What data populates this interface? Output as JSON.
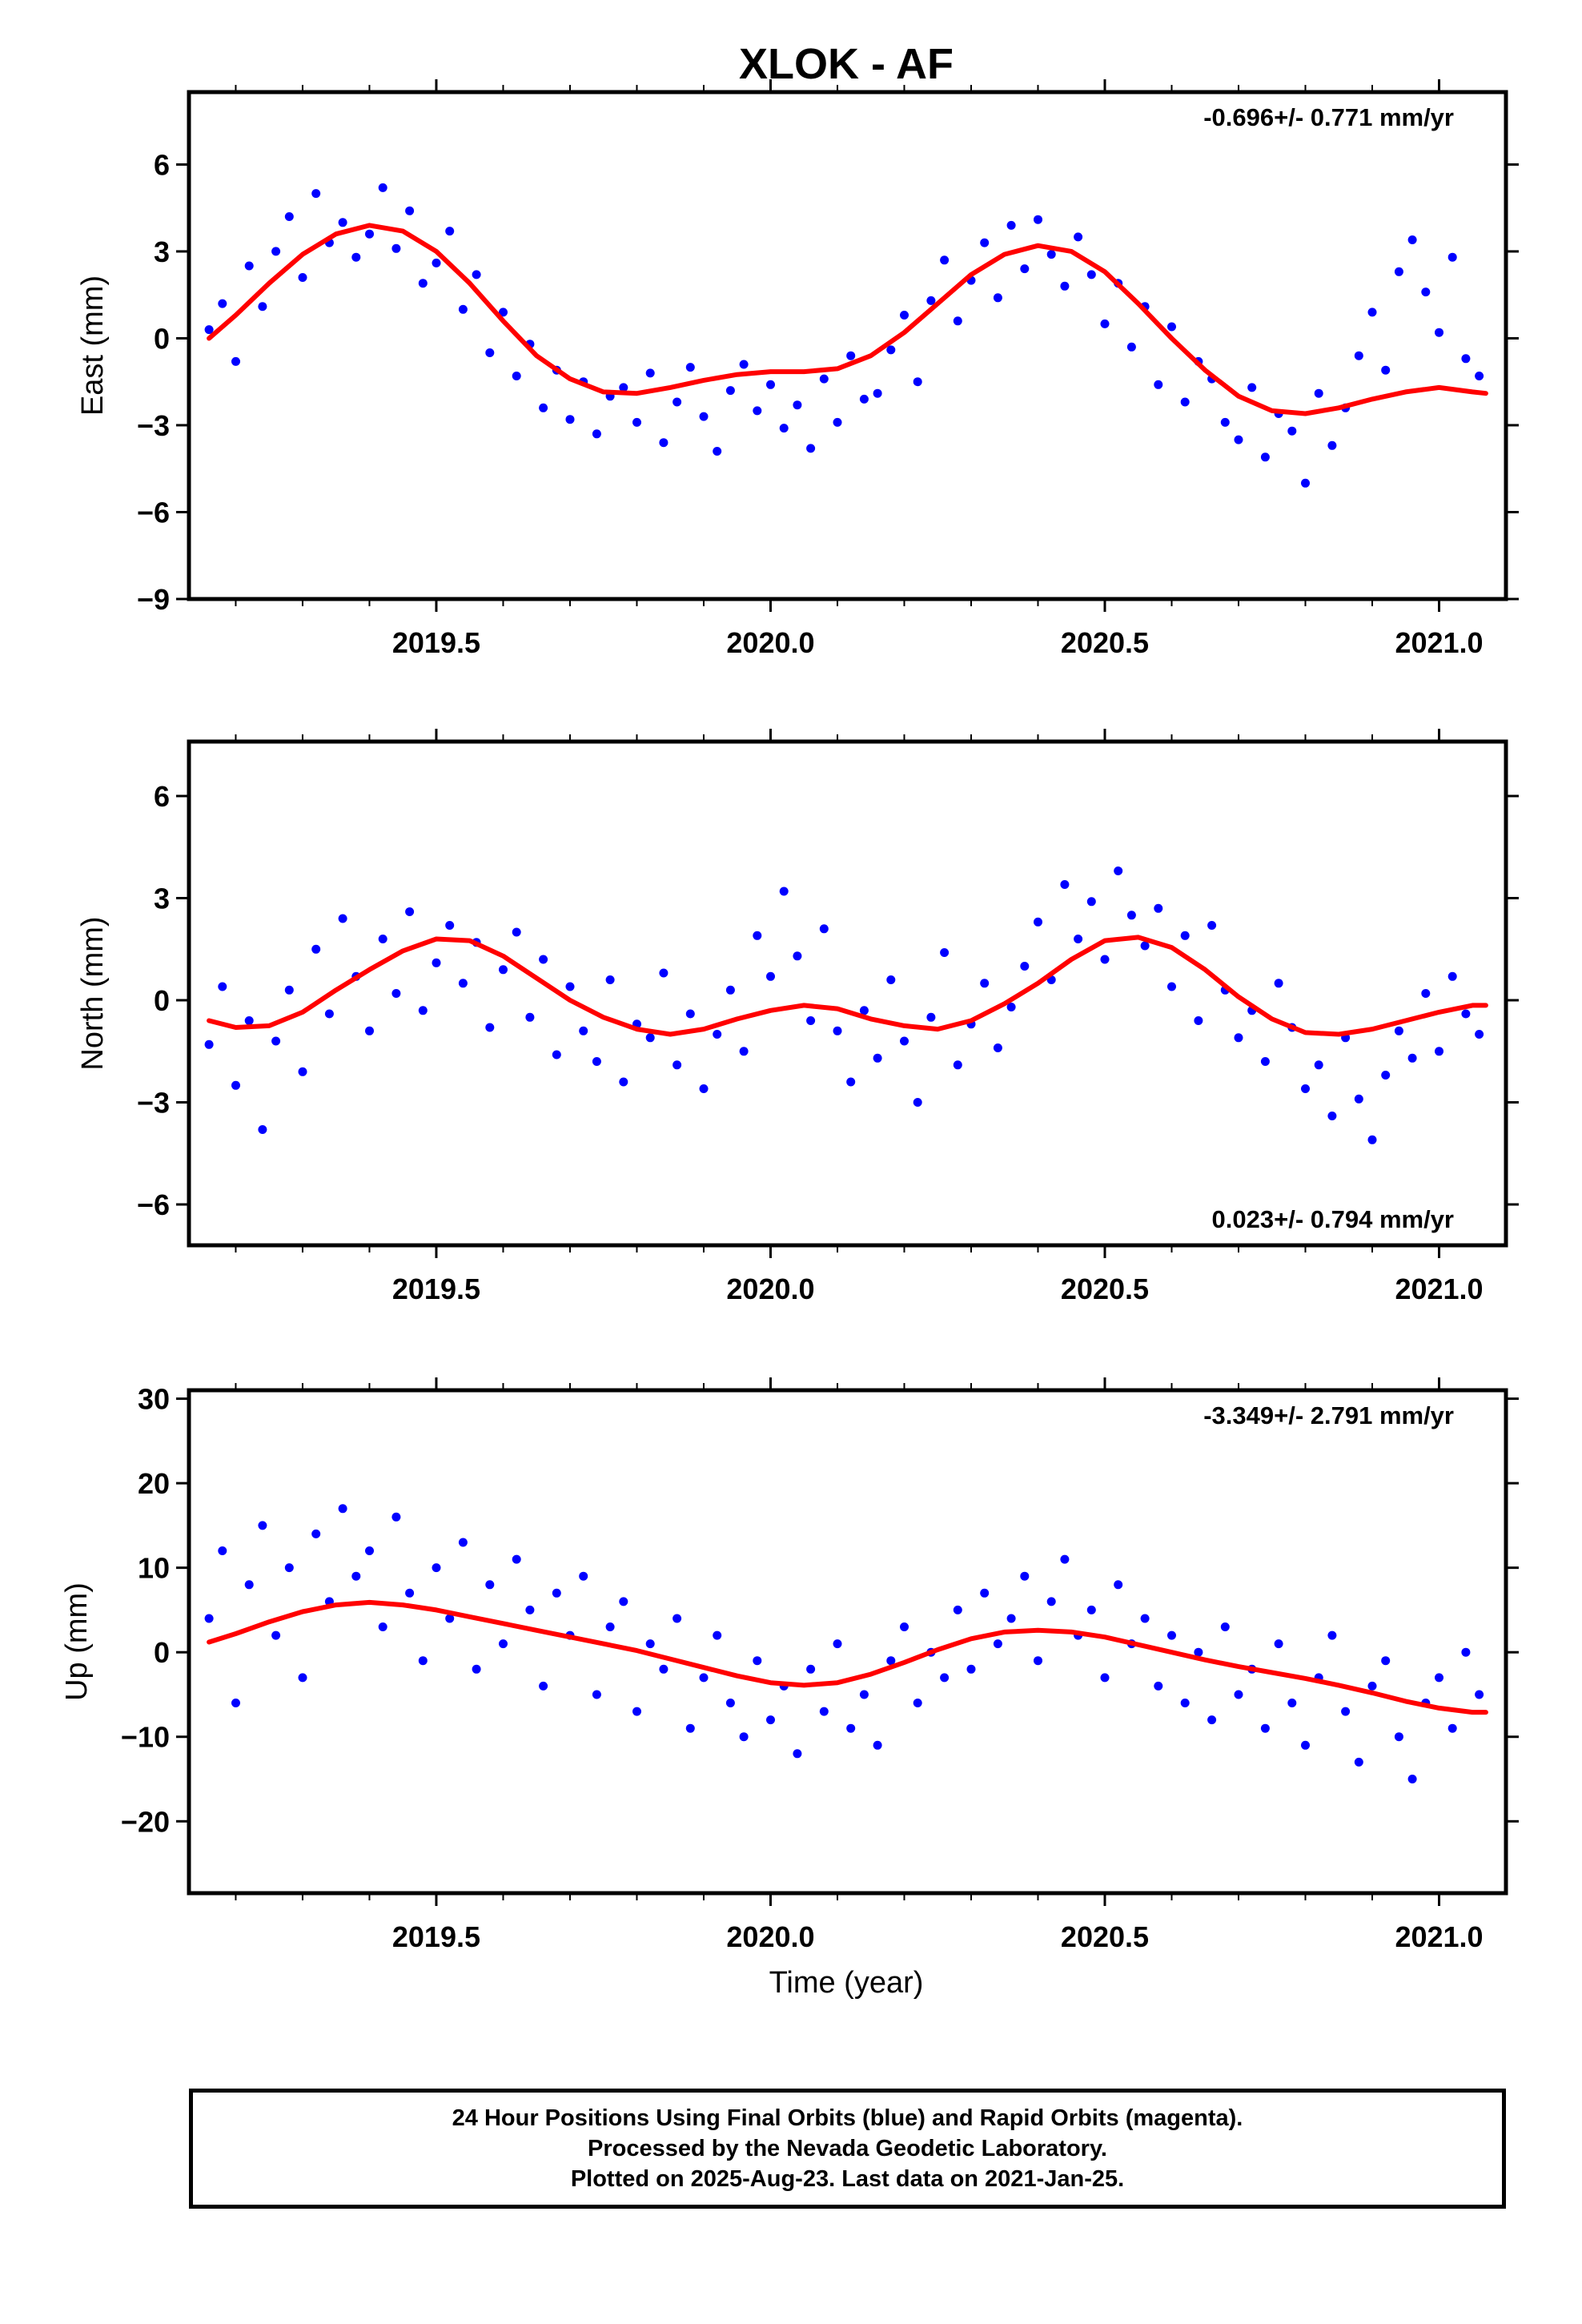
{
  "title": "XLOK - AF",
  "x_axis_label": "Time (year)",
  "footer": {
    "line1": "24 Hour Positions Using Final Orbits (blue) and Rapid Orbits (magenta).",
    "line2": "Processed by the Nevada Geodetic Laboratory.",
    "line3": "Plotted on 2025-Aug-23. Last data on 2021-Jan-25."
  },
  "colors": {
    "points": "#0000ff",
    "fit": "#ff0000",
    "frame": "#000000"
  },
  "chart_data": [
    {
      "type": "scatter",
      "ylabel": "East (mm)",
      "rate_label": "-0.696+/- 0.771 mm/yr",
      "rate_position": "top-right",
      "xlim": [
        2019.13,
        2021.1
      ],
      "ylim": [
        -9,
        8.5
      ],
      "xticks": [
        2019.5,
        2020.0,
        2020.5,
        2021.0
      ],
      "xtick_labels": [
        "2019.5",
        "2020.0",
        "2020.5",
        "2021.0"
      ],
      "yticks": [
        -9,
        -6,
        -3,
        0,
        3,
        6
      ],
      "ytick_labels": [
        "−9",
        "−6",
        "−3",
        "0",
        "3",
        "6"
      ],
      "grid": false,
      "series": [
        {
          "kind": "points",
          "x": [
            2019.16,
            2019.18,
            2019.2,
            2019.22,
            2019.24,
            2019.26,
            2019.28,
            2019.3,
            2019.32,
            2019.34,
            2019.36,
            2019.38,
            2019.4,
            2019.42,
            2019.44,
            2019.46,
            2019.48,
            2019.5,
            2019.52,
            2019.54,
            2019.56,
            2019.58,
            2019.6,
            2019.62,
            2019.64,
            2019.66,
            2019.68,
            2019.7,
            2019.72,
            2019.74,
            2019.76,
            2019.78,
            2019.8,
            2019.82,
            2019.84,
            2019.86,
            2019.88,
            2019.9,
            2019.92,
            2019.94,
            2019.96,
            2019.98,
            2020.0,
            2020.02,
            2020.04,
            2020.06,
            2020.08,
            2020.1,
            2020.12,
            2020.14,
            2020.16,
            2020.18,
            2020.2,
            2020.22,
            2020.24,
            2020.26,
            2020.28,
            2020.3,
            2020.32,
            2020.34,
            2020.36,
            2020.38,
            2020.4,
            2020.42,
            2020.44,
            2020.46,
            2020.48,
            2020.5,
            2020.52,
            2020.54,
            2020.56,
            2020.58,
            2020.6,
            2020.62,
            2020.64,
            2020.66,
            2020.68,
            2020.7,
            2020.72,
            2020.74,
            2020.76,
            2020.78,
            2020.8,
            2020.82,
            2020.84,
            2020.86,
            2020.88,
            2020.9,
            2020.92,
            2020.94,
            2020.96,
            2020.98,
            2021.0,
            2021.02,
            2021.04,
            2021.06
          ],
          "y": [
            0.3,
            1.2,
            -0.8,
            2.5,
            1.1,
            3.0,
            4.2,
            2.1,
            5.0,
            3.3,
            4.0,
            2.8,
            3.6,
            5.2,
            3.1,
            4.4,
            1.9,
            2.6,
            3.7,
            1.0,
            2.2,
            -0.5,
            0.9,
            -1.3,
            -0.2,
            -2.4,
            -1.1,
            -2.8,
            -1.5,
            -3.3,
            -2.0,
            -1.7,
            -2.9,
            -1.2,
            -3.6,
            -2.2,
            -1.0,
            -2.7,
            -3.9,
            -1.8,
            -0.9,
            -2.5,
            -1.6,
            -3.1,
            -2.3,
            -3.8,
            -1.4,
            -2.9,
            -0.6,
            -2.1,
            -1.9,
            -0.4,
            0.8,
            -1.5,
            1.3,
            2.7,
            0.6,
            2.0,
            3.3,
            1.4,
            3.9,
            2.4,
            4.1,
            2.9,
            1.8,
            3.5,
            2.2,
            0.5,
            1.9,
            -0.3,
            1.1,
            -1.6,
            0.4,
            -2.2,
            -0.8,
            -1.4,
            -2.9,
            -3.5,
            -1.7,
            -4.1,
            -2.6,
            -3.2,
            -5.0,
            -1.9,
            -3.7,
            -2.4,
            -0.6,
            0.9,
            -1.1,
            2.3,
            3.4,
            1.6,
            0.2,
            2.8,
            -0.7,
            -1.3
          ],
          "ref": "blue"
        },
        {
          "kind": "fit",
          "x": [
            2019.16,
            2019.2,
            2019.25,
            2019.3,
            2019.35,
            2019.4,
            2019.45,
            2019.5,
            2019.55,
            2019.6,
            2019.65,
            2019.7,
            2019.75,
            2019.8,
            2019.85,
            2019.9,
            2019.95,
            2020.0,
            2020.05,
            2020.1,
            2020.15,
            2020.2,
            2020.25,
            2020.3,
            2020.35,
            2020.4,
            2020.45,
            2020.5,
            2020.55,
            2020.6,
            2020.65,
            2020.7,
            2020.75,
            2020.8,
            2020.85,
            2020.9,
            2020.95,
            2021.0,
            2021.05,
            2021.07
          ],
          "y": [
            0.0,
            0.8,
            1.9,
            2.9,
            3.6,
            3.9,
            3.7,
            3.0,
            1.9,
            0.6,
            -0.6,
            -1.4,
            -1.85,
            -1.9,
            -1.7,
            -1.45,
            -1.25,
            -1.15,
            -1.15,
            -1.05,
            -0.6,
            0.2,
            1.2,
            2.2,
            2.9,
            3.2,
            3.0,
            2.3,
            1.2,
            0.0,
            -1.1,
            -2.0,
            -2.5,
            -2.6,
            -2.4,
            -2.1,
            -1.85,
            -1.7,
            -1.85,
            -1.9
          ],
          "ref": "red"
        }
      ]
    },
    {
      "type": "scatter",
      "ylabel": "North (mm)",
      "rate_label": "0.023+/- 0.794 mm/yr",
      "rate_position": "bottom-right",
      "xlim": [
        2019.13,
        2021.1
      ],
      "ylim": [
        -7.2,
        7.6
      ],
      "xticks": [
        2019.5,
        2020.0,
        2020.5,
        2021.0
      ],
      "xtick_labels": [
        "2019.5",
        "2020.0",
        "2020.5",
        "2021.0"
      ],
      "yticks": [
        -6,
        -3,
        0,
        3,
        6
      ],
      "ytick_labels": [
        "−6",
        "−3",
        "0",
        "3",
        "6"
      ],
      "grid": false,
      "series": [
        {
          "kind": "points",
          "x": [
            2019.16,
            2019.18,
            2019.2,
            2019.22,
            2019.24,
            2019.26,
            2019.28,
            2019.3,
            2019.32,
            2019.34,
            2019.36,
            2019.38,
            2019.4,
            2019.42,
            2019.44,
            2019.46,
            2019.48,
            2019.5,
            2019.52,
            2019.54,
            2019.56,
            2019.58,
            2019.6,
            2019.62,
            2019.64,
            2019.66,
            2019.68,
            2019.7,
            2019.72,
            2019.74,
            2019.76,
            2019.78,
            2019.8,
            2019.82,
            2019.84,
            2019.86,
            2019.88,
            2019.9,
            2019.92,
            2019.94,
            2019.96,
            2019.98,
            2020.0,
            2020.02,
            2020.04,
            2020.06,
            2020.08,
            2020.1,
            2020.12,
            2020.14,
            2020.16,
            2020.18,
            2020.2,
            2020.22,
            2020.24,
            2020.26,
            2020.28,
            2020.3,
            2020.32,
            2020.34,
            2020.36,
            2020.38,
            2020.4,
            2020.42,
            2020.44,
            2020.46,
            2020.48,
            2020.5,
            2020.52,
            2020.54,
            2020.56,
            2020.58,
            2020.6,
            2020.62,
            2020.64,
            2020.66,
            2020.68,
            2020.7,
            2020.72,
            2020.74,
            2020.76,
            2020.78,
            2020.8,
            2020.82,
            2020.84,
            2020.86,
            2020.88,
            2020.9,
            2020.92,
            2020.94,
            2020.96,
            2020.98,
            2021.0,
            2021.02,
            2021.04,
            2021.06
          ],
          "y": [
            -1.3,
            0.4,
            -2.5,
            -0.6,
            -3.8,
            -1.2,
            0.3,
            -2.1,
            1.5,
            -0.4,
            2.4,
            0.7,
            -0.9,
            1.8,
            0.2,
            2.6,
            -0.3,
            1.1,
            2.2,
            0.5,
            1.7,
            -0.8,
            0.9,
            2.0,
            -0.5,
            1.2,
            -1.6,
            0.4,
            -0.9,
            -1.8,
            0.6,
            -2.4,
            -0.7,
            -1.1,
            0.8,
            -1.9,
            -0.4,
            -2.6,
            -1.0,
            0.3,
            -1.5,
            1.9,
            0.7,
            3.2,
            1.3,
            -0.6,
            2.1,
            -0.9,
            -2.4,
            -0.3,
            -1.7,
            0.6,
            -1.2,
            -3.0,
            -0.5,
            1.4,
            -1.9,
            -0.7,
            0.5,
            -1.4,
            -0.2,
            1.0,
            2.3,
            0.6,
            3.4,
            1.8,
            2.9,
            1.2,
            3.8,
            2.5,
            1.6,
            2.7,
            0.4,
            1.9,
            -0.6,
            2.2,
            0.3,
            -1.1,
            -0.3,
            -1.8,
            0.5,
            -0.8,
            -2.6,
            -1.9,
            -3.4,
            -1.1,
            -2.9,
            -4.1,
            -2.2,
            -0.9,
            -1.7,
            0.2,
            -1.5,
            0.7,
            -0.4,
            -1.0
          ],
          "ref": "blue"
        },
        {
          "kind": "fit",
          "x": [
            2019.16,
            2019.2,
            2019.25,
            2019.3,
            2019.35,
            2019.4,
            2019.45,
            2019.5,
            2019.55,
            2019.6,
            2019.65,
            2019.7,
            2019.75,
            2019.8,
            2019.85,
            2019.9,
            2019.95,
            2020.0,
            2020.05,
            2020.1,
            2020.15,
            2020.2,
            2020.25,
            2020.3,
            2020.35,
            2020.4,
            2020.45,
            2020.5,
            2020.55,
            2020.6,
            2020.65,
            2020.7,
            2020.75,
            2020.8,
            2020.85,
            2020.9,
            2020.95,
            2021.0,
            2021.05,
            2021.07
          ],
          "y": [
            -0.6,
            -0.8,
            -0.75,
            -0.35,
            0.3,
            0.9,
            1.45,
            1.8,
            1.75,
            1.3,
            0.65,
            0.0,
            -0.5,
            -0.85,
            -1.0,
            -0.85,
            -0.55,
            -0.3,
            -0.15,
            -0.25,
            -0.55,
            -0.75,
            -0.85,
            -0.6,
            -0.1,
            0.5,
            1.2,
            1.75,
            1.85,
            1.55,
            0.9,
            0.1,
            -0.55,
            -0.95,
            -1.0,
            -0.85,
            -0.6,
            -0.35,
            -0.15,
            -0.15
          ],
          "ref": "red"
        }
      ]
    },
    {
      "type": "scatter",
      "ylabel": "Up (mm)",
      "rate_label": "-3.349+/- 2.791 mm/yr",
      "rate_position": "top-right",
      "xlim": [
        2019.13,
        2021.1
      ],
      "ylim": [
        -28.5,
        31
      ],
      "xticks": [
        2019.5,
        2020.0,
        2020.5,
        2021.0
      ],
      "xtick_labels": [
        "2019.5",
        "2020.0",
        "2020.5",
        "2021.0"
      ],
      "yticks": [
        -20,
        -10,
        0,
        10,
        20,
        30
      ],
      "ytick_labels": [
        "−20",
        "−10",
        "0",
        "10",
        "20",
        "30"
      ],
      "grid": false,
      "series": [
        {
          "kind": "points",
          "x": [
            2019.16,
            2019.18,
            2019.2,
            2019.22,
            2019.24,
            2019.26,
            2019.28,
            2019.3,
            2019.32,
            2019.34,
            2019.36,
            2019.38,
            2019.4,
            2019.42,
            2019.44,
            2019.46,
            2019.48,
            2019.5,
            2019.52,
            2019.54,
            2019.56,
            2019.58,
            2019.6,
            2019.62,
            2019.64,
            2019.66,
            2019.68,
            2019.7,
            2019.72,
            2019.74,
            2019.76,
            2019.78,
            2019.8,
            2019.82,
            2019.84,
            2019.86,
            2019.88,
            2019.9,
            2019.92,
            2019.94,
            2019.96,
            2019.98,
            2020.0,
            2020.02,
            2020.04,
            2020.06,
            2020.08,
            2020.1,
            2020.12,
            2020.14,
            2020.16,
            2020.18,
            2020.2,
            2020.22,
            2020.24,
            2020.26,
            2020.28,
            2020.3,
            2020.32,
            2020.34,
            2020.36,
            2020.38,
            2020.4,
            2020.42,
            2020.44,
            2020.46,
            2020.48,
            2020.5,
            2020.52,
            2020.54,
            2020.56,
            2020.58,
            2020.6,
            2020.62,
            2020.64,
            2020.66,
            2020.68,
            2020.7,
            2020.72,
            2020.74,
            2020.76,
            2020.78,
            2020.8,
            2020.82,
            2020.84,
            2020.86,
            2020.88,
            2020.9,
            2020.92,
            2020.94,
            2020.96,
            2020.98,
            2021.0,
            2021.02,
            2021.04,
            2021.06
          ],
          "y": [
            4.0,
            12.0,
            -6.0,
            8.0,
            15.0,
            2.0,
            10.0,
            -3.0,
            14.0,
            6.0,
            17.0,
            9.0,
            12.0,
            3.0,
            16.0,
            7.0,
            -1.0,
            10.0,
            4.0,
            13.0,
            -2.0,
            8.0,
            1.0,
            11.0,
            5.0,
            -4.0,
            7.0,
            2.0,
            9.0,
            -5.0,
            3.0,
            6.0,
            -7.0,
            1.0,
            -2.0,
            4.0,
            -9.0,
            -3.0,
            2.0,
            -6.0,
            -10.0,
            -1.0,
            -8.0,
            -4.0,
            -12.0,
            -2.0,
            -7.0,
            1.0,
            -9.0,
            -5.0,
            -11.0,
            -1.0,
            3.0,
            -6.0,
            0.0,
            -3.0,
            5.0,
            -2.0,
            7.0,
            1.0,
            4.0,
            9.0,
            -1.0,
            6.0,
            11.0,
            2.0,
            5.0,
            -3.0,
            8.0,
            1.0,
            4.0,
            -4.0,
            2.0,
            -6.0,
            0.0,
            -8.0,
            3.0,
            -5.0,
            -2.0,
            -9.0,
            1.0,
            -6.0,
            -11.0,
            -3.0,
            2.0,
            -7.0,
            -13.0,
            -4.0,
            -1.0,
            -10.0,
            -15.0,
            -6.0,
            -3.0,
            -9.0,
            0.0,
            -5.0
          ],
          "ref": "blue"
        },
        {
          "kind": "fit",
          "x": [
            2019.16,
            2019.2,
            2019.25,
            2019.3,
            2019.35,
            2019.4,
            2019.45,
            2019.5,
            2019.55,
            2019.6,
            2019.65,
            2019.7,
            2019.75,
            2019.8,
            2019.85,
            2019.9,
            2019.95,
            2020.0,
            2020.05,
            2020.1,
            2020.15,
            2020.2,
            2020.25,
            2020.3,
            2020.35,
            2020.4,
            2020.45,
            2020.5,
            2020.55,
            2020.6,
            2020.65,
            2020.7,
            2020.75,
            2020.8,
            2020.85,
            2020.9,
            2020.95,
            2021.0,
            2021.05,
            2021.07
          ],
          "y": [
            1.2,
            2.2,
            3.6,
            4.8,
            5.6,
            5.9,
            5.6,
            5.0,
            4.2,
            3.4,
            2.6,
            1.8,
            1.0,
            0.2,
            -0.8,
            -1.8,
            -2.8,
            -3.6,
            -3.9,
            -3.6,
            -2.6,
            -1.2,
            0.3,
            1.6,
            2.4,
            2.6,
            2.4,
            1.8,
            0.9,
            0.0,
            -0.9,
            -1.7,
            -2.4,
            -3.1,
            -3.9,
            -4.8,
            -5.8,
            -6.6,
            -7.1,
            -7.1
          ],
          "ref": "red"
        }
      ]
    }
  ]
}
